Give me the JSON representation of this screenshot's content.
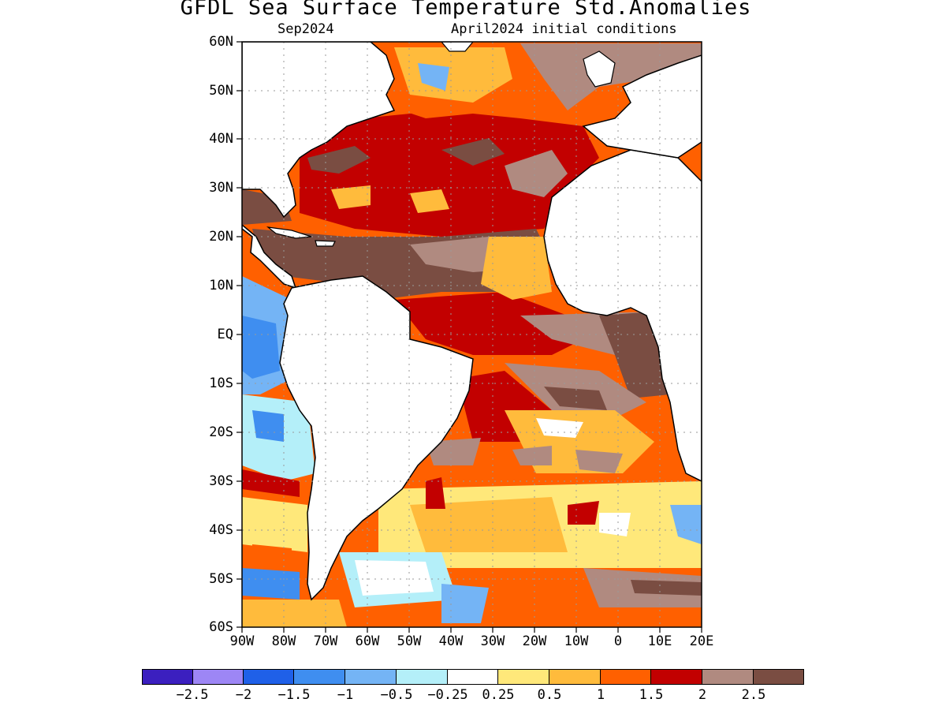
{
  "title": "GFDL Sea Surface Temperature Std.Anomalies",
  "subtitle_left": "Sep2024",
  "subtitle_right": "April2024 initial conditions",
  "lat_labels": [
    "60N",
    "50N",
    "40N",
    "30N",
    "20N",
    "10N",
    "EQ",
    "10S",
    "20S",
    "30S",
    "40S",
    "50S",
    "60S"
  ],
  "lon_labels": [
    "90W",
    "80W",
    "70W",
    "60W",
    "50W",
    "40W",
    "30W",
    "20W",
    "10W",
    "0",
    "10E",
    "20E"
  ],
  "colorbar": {
    "colors": [
      "#3b1fbf",
      "#9d86f5",
      "#1f60e8",
      "#3f8ef0",
      "#74b4f5",
      "#b4eff9",
      "#ffffff",
      "#ffe87a",
      "#ffbb3c",
      "#ff6000",
      "#c20000",
      "#b08a80",
      "#7a4d42"
    ],
    "labels": [
      "−2.5",
      "−2",
      "−1.5",
      "−1",
      "−0.5",
      "−0.25",
      "0.25",
      "0.5",
      "1",
      "1.5",
      "2",
      "2.5"
    ]
  },
  "map": {
    "lat_range": [
      -60,
      60
    ],
    "lon_range": [
      -90,
      20
    ]
  }
}
